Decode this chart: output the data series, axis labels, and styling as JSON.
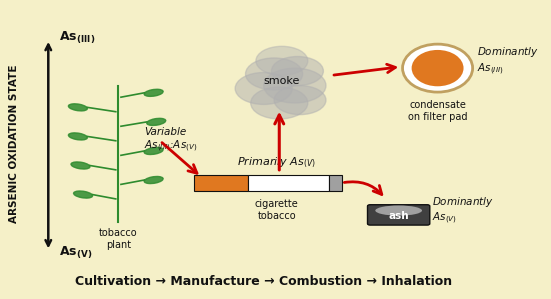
{
  "bg_color": "#f5f0c8",
  "title_bottom": "Cultivation → Manufacture → Combustion → Inhalation",
  "arrow_color": "#cc0000",
  "axis_label": "ARSENIC OXIDATION STATE",
  "as3_label": "As₈₈₈",
  "as5_label": "As₈₈₈₈₈",
  "smoke_label": "smoke",
  "primarily_label": "Primarily As",
  "variable_label": "Variable\nAs",
  "tobacco_label": "tobacco\nplant",
  "cigarette_label": "cigarette\ntobacco",
  "ash_label": "ash",
  "condensate_label": "condensate\non filter pad",
  "dominantly_iii_label": "Dominantly\nAs",
  "dominantly_v_label": "Dominantly\nAs",
  "orange_color": "#e07820",
  "white_color": "#ffffff",
  "gray_color": "#a0a0a0",
  "dark_gray": "#606060",
  "green_color": "#2e8b2e",
  "black_color": "#111111",
  "smoke_gray": "#b0b0b0"
}
